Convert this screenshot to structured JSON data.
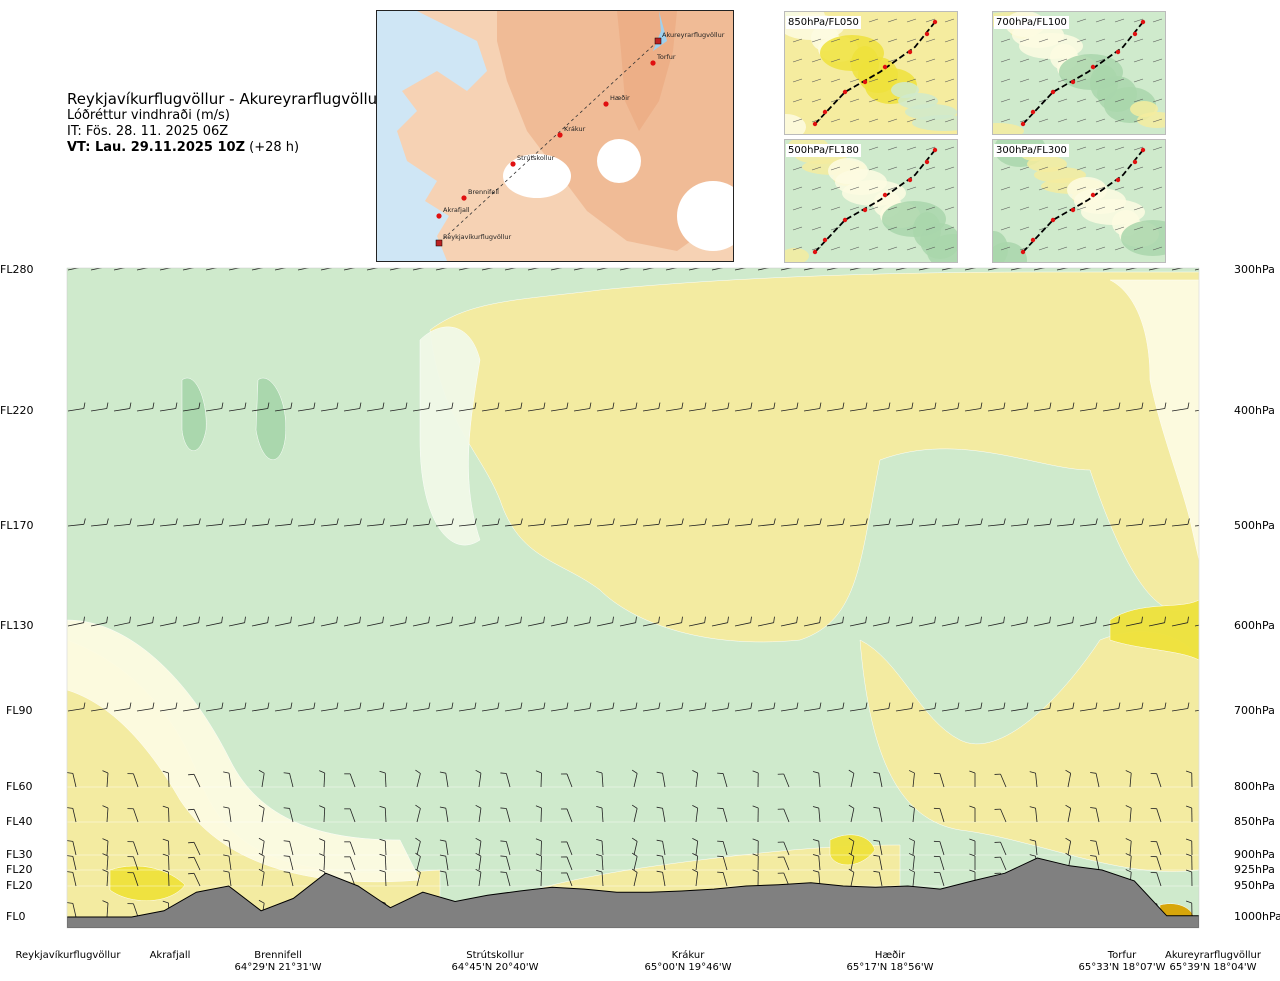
{
  "header": {
    "route": "Reykjavíkurflugvöllur - Akureyrarflugvöllur",
    "parameter": "Lóðréttur vindhraði (m/s)",
    "issue_time": "IT: Fös. 28. 11. 2025 06Z",
    "valid_time_bold": "VT: Lau. 29.11.2025 10Z",
    "valid_time_offset": "(+28 h)"
  },
  "map": {
    "points": [
      {
        "name": "Akureyrarflugvöllur",
        "marker": "square"
      },
      {
        "name": "Torfur",
        "marker": "dot"
      },
      {
        "name": "Hæðir",
        "marker": "dot"
      },
      {
        "name": "Krákur",
        "marker": "dot"
      },
      {
        "name": "Strútskollur",
        "marker": "dot"
      },
      {
        "name": "Brennifell",
        "marker": "dot"
      },
      {
        "name": "Akrafjall",
        "marker": "dot"
      },
      {
        "name": "Reykjavíkurflugvöllur",
        "marker": "square"
      }
    ],
    "colors": {
      "sea": "#cfe6f5",
      "land": "#f6d2b4",
      "highland": "#eba77d",
      "glacier": "#ffffff"
    }
  },
  "panels": [
    {
      "label": "850hPa/FL050"
    },
    {
      "label": "700hPa/FL100"
    },
    {
      "label": "500hPa/FL180"
    },
    {
      "label": "300hPa/FL300"
    }
  ],
  "chart_data": {
    "type": "heatmap",
    "title": "Reykjavíkurflugvöllur - Akureyrarflugvöllur",
    "variable": "Lóðréttur vindhraði (m/s)",
    "y_left_ticks": [
      "FL280",
      "FL220",
      "FL170",
      "FL130",
      "FL90",
      "FL60",
      "FL40",
      "FL30",
      "FL20",
      "FL20",
      "FL0"
    ],
    "y_right_ticks": [
      "300hPa",
      "400hPa",
      "500hPa",
      "600hPa",
      "700hPa",
      "800hPa",
      "850hPa",
      "900hPa",
      "925hPa",
      "950hPa",
      "1000hPa"
    ],
    "pressure_levels_hpa": [
      300,
      400,
      500,
      600,
      700,
      800,
      850,
      900,
      925,
      950,
      1000
    ],
    "x_locations": [
      {
        "name": "Reykjavíkurflugvöllur",
        "coord": ""
      },
      {
        "name": "Akrafjall",
        "coord": ""
      },
      {
        "name": "Brennifell",
        "coord": "64°29'N 21°31'W"
      },
      {
        "name": "Strútskollur",
        "coord": "64°45'N 20°40'W"
      },
      {
        "name": "Krákur",
        "coord": "65°00'N 19°46'W"
      },
      {
        "name": "Hæðir",
        "coord": "65°17'N 18°56'W"
      },
      {
        "name": "Torfur",
        "coord": "65°33'N 18°07'W"
      },
      {
        "name": "Akureyrarflugvöllur",
        "coord": "65°39'N 18°04'W"
      }
    ],
    "category_colors": {
      "strong_down": "#7fbf8f",
      "down": "#a9d6ac",
      "weak_down": "#cfeacc",
      "near_zero": "#f1f9e8",
      "neutral": "#fdfbe2",
      "weak_up": "#f5ec9f",
      "up": "#efe23b",
      "strong_up": "#d8a300",
      "terrain": "#808080"
    },
    "terrain_profile_hpa": [
      1000,
      1000,
      1000,
      990,
      960,
      950,
      990,
      970,
      930,
      950,
      985,
      960,
      975,
      965,
      958,
      952,
      955,
      960,
      960,
      958,
      955,
      950,
      948,
      945,
      950,
      952,
      950,
      955,
      942,
      930,
      905,
      918,
      925,
      942,
      998,
      998
    ]
  }
}
